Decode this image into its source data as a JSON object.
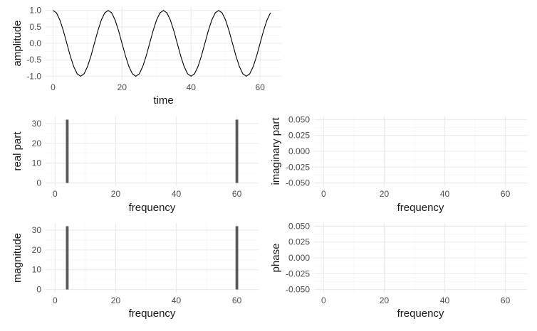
{
  "chart_data": [
    {
      "id": "time",
      "type": "line",
      "xlabel": "time",
      "ylabel": "amplitude",
      "xlim": [
        -2.15,
        66.15
      ],
      "ylim": [
        -1.1,
        1.1
      ],
      "xticks": [
        0,
        20,
        40,
        60
      ],
      "xtick_labels": [
        "0",
        "20",
        "40",
        "60"
      ],
      "yticks": [
        -1,
        -0.5,
        0,
        0.5,
        1
      ],
      "ytick_labels": [
        "-1.0",
        "-0.5",
        "0.0",
        "0.5",
        "1.0"
      ],
      "grid": true,
      "series": [
        {
          "function": "cos(2*pi*4*t/64)",
          "x_range": [
            0,
            63
          ],
          "n_points": 64,
          "color": "#000000"
        }
      ]
    },
    {
      "id": "real",
      "type": "bar",
      "xlabel": "frequency",
      "ylabel": "real part",
      "xlim": [
        -3.15,
        67.15
      ],
      "ylim": [
        -1.6,
        33.6
      ],
      "xticks": [
        0,
        20,
        40,
        60
      ],
      "xtick_labels": [
        "0",
        "20",
        "40",
        "60"
      ],
      "yticks": [
        0,
        10,
        20,
        30
      ],
      "ytick_labels": [
        "0",
        "10",
        "20",
        "30"
      ],
      "grid": true,
      "n_points": 64,
      "points": [
        {
          "x": 4,
          "y": 32
        },
        {
          "x": 60,
          "y": 32
        }
      ],
      "default_value": 0,
      "bar_color": "#595959"
    },
    {
      "id": "imag",
      "type": "bar",
      "xlabel": "frequency",
      "ylabel": "imaginary part",
      "xlim": [
        -3.15,
        67.15
      ],
      "ylim": [
        -0.055,
        0.055
      ],
      "xticks": [
        0,
        20,
        40,
        60
      ],
      "xtick_labels": [
        "0",
        "20",
        "40",
        "60"
      ],
      "yticks": [
        -0.05,
        -0.025,
        0,
        0.025,
        0.05
      ],
      "ytick_labels": [
        "-0.050",
        "-0.025",
        "0.000",
        "0.025",
        "0.050"
      ],
      "grid": true,
      "n_points": 64,
      "points": [],
      "default_value": 0,
      "bar_color": "#595959"
    },
    {
      "id": "mag",
      "type": "bar",
      "xlabel": "frequency",
      "ylabel": "magnitude",
      "xlim": [
        -3.15,
        67.15
      ],
      "ylim": [
        -1.6,
        33.6
      ],
      "xticks": [
        0,
        20,
        40,
        60
      ],
      "xtick_labels": [
        "0",
        "20",
        "40",
        "60"
      ],
      "yticks": [
        0,
        10,
        20,
        30
      ],
      "ytick_labels": [
        "0",
        "10",
        "20",
        "30"
      ],
      "grid": true,
      "n_points": 64,
      "points": [
        {
          "x": 4,
          "y": 32
        },
        {
          "x": 60,
          "y": 32
        }
      ],
      "default_value": 0,
      "bar_color": "#595959"
    },
    {
      "id": "phase",
      "type": "bar",
      "xlabel": "frequency",
      "ylabel": "phase",
      "xlim": [
        -3.15,
        67.15
      ],
      "ylim": [
        -0.055,
        0.055
      ],
      "xticks": [
        0,
        20,
        40,
        60
      ],
      "xtick_labels": [
        "0",
        "20",
        "40",
        "60"
      ],
      "yticks": [
        -0.05,
        -0.025,
        0,
        0.025,
        0.05
      ],
      "ytick_labels": [
        "-0.050",
        "-0.025",
        "0.000",
        "0.025",
        "0.050"
      ],
      "grid": true,
      "n_points": 64,
      "points": [],
      "default_value": 0,
      "bar_color": "#595959"
    }
  ],
  "colors": {
    "grid_major": "#ebebeb",
    "grid_minor": "#f4f4f4",
    "tick_text": "#4d4d4d",
    "title_text": "#1a1a1a"
  }
}
